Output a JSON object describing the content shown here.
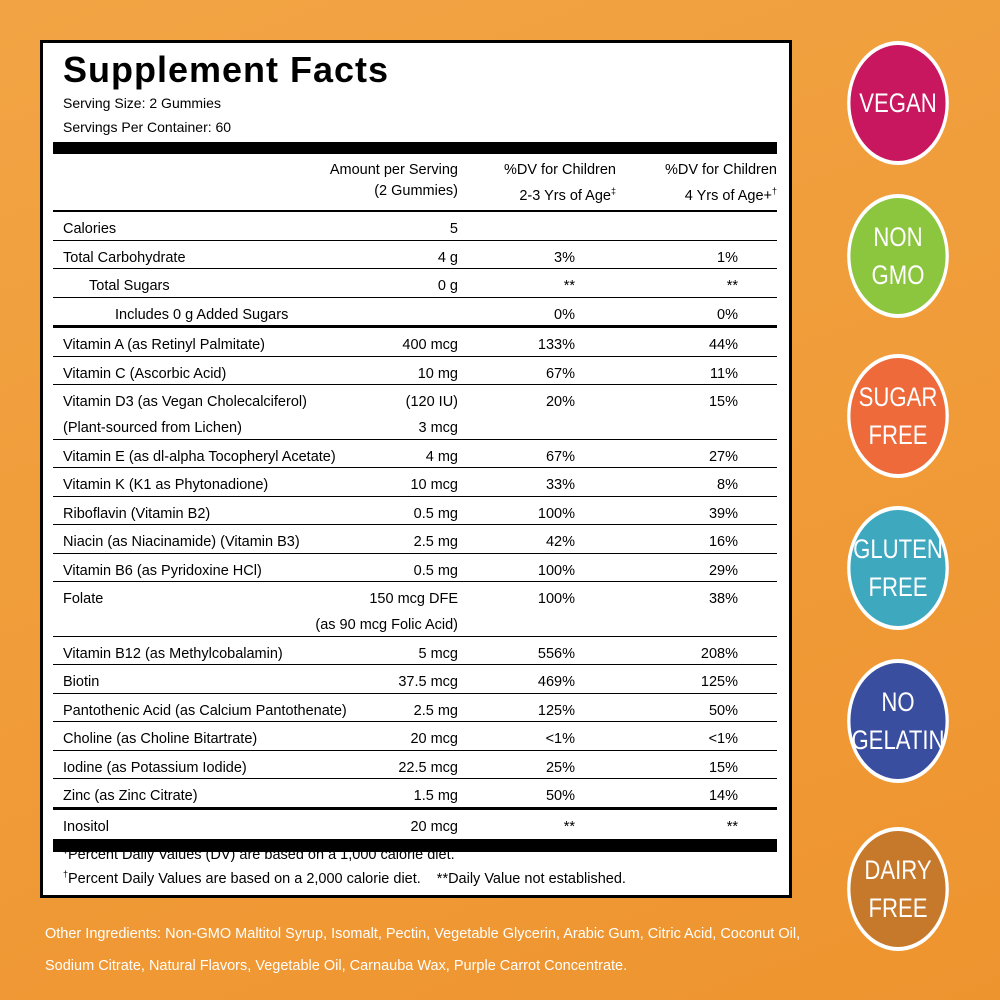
{
  "panel": {
    "title": "Supplement Facts",
    "serving_size": "Serving Size: 2 Gummies",
    "servings_per_container": "Servings Per Container: 60"
  },
  "header": {
    "columns": [
      {
        "lines": [
          "Amount per Serving",
          "(2 Gummies)"
        ]
      },
      {
        "lines": [
          "%DV for Children",
          "2-3 Yrs of Age"
        ],
        "mark": "‡"
      },
      {
        "lines": [
          "%DV for Children",
          "4 Yrs of Age+"
        ],
        "mark": "†"
      }
    ]
  },
  "table": {
    "sections": [
      {
        "rows": [
          {
            "name": [
              "Calories"
            ],
            "amount": [
              "5"
            ]
          },
          {
            "name": [
              "Total Carbohydrate"
            ],
            "amount": [
              "4 g"
            ],
            "dv_2_3": "3%",
            "dv_4": "1%"
          },
          {
            "name": [
              "Total Sugars"
            ],
            "amount": [
              "0 g"
            ],
            "dv_2_3": "**",
            "dv_4": "**"
          },
          {
            "name": [
              "Includes 0 g Added Sugars"
            ],
            "dv_2_3": "0%",
            "dv_4": "0%"
          }
        ]
      },
      {
        "rows": [
          {
            "name": [
              "Vitamin A (as Retinyl Palmitate)"
            ],
            "amount": [
              "400 mcg"
            ],
            "dv_2_3": "133%",
            "dv_4": "44%"
          },
          {
            "name": [
              "Vitamin C (Ascorbic Acid)"
            ],
            "amount": [
              "10 mg"
            ],
            "dv_2_3": "67%",
            "dv_4": "11%"
          },
          {
            "name": [
              "Vitamin D3 (as Vegan Cholecalciferol)",
              "(Plant-sourced from Lichen)"
            ],
            "amount": [
              "(120 IU)",
              "3 mcg"
            ],
            "dv_2_3": "20%",
            "dv_4": "15%"
          },
          {
            "name": [
              "Vitamin E (as dl-alpha Tocopheryl Acetate)"
            ],
            "amount": [
              "4 mg"
            ],
            "dv_2_3": "67%",
            "dv_4": "27%"
          },
          {
            "name": [
              "Vitamin K (K1 as Phytonadione)"
            ],
            "amount": [
              "10 mcg"
            ],
            "dv_2_3": "33%",
            "dv_4": "8%"
          },
          {
            "name": [
              "Riboflavin (Vitamin B2)"
            ],
            "amount": [
              "0.5 mg"
            ],
            "dv_2_3": "100%",
            "dv_4": "39%"
          },
          {
            "name": [
              "Niacin (as Niacinamide) (Vitamin B3)"
            ],
            "amount": [
              "2.5 mg"
            ],
            "dv_2_3": "42%",
            "dv_4": "16%"
          },
          {
            "name": [
              "Vitamin B6 (as Pyridoxine HCl)"
            ],
            "amount": [
              "0.5 mg"
            ],
            "dv_2_3": "100%",
            "dv_4": "29%"
          },
          {
            "name": [
              "Folate"
            ],
            "amount": [
              "150 mcg DFE",
              "(as 90 mcg Folic Acid)"
            ],
            "dv_2_3": "100%",
            "dv_4": "38%"
          },
          {
            "name": [
              "Vitamin B12 (as Methylcobalamin)"
            ],
            "amount": [
              "5 mcg"
            ],
            "dv_2_3": "556%",
            "dv_4": "208%"
          },
          {
            "name": [
              "Biotin"
            ],
            "amount": [
              "37.5 mcg"
            ],
            "dv_2_3": "469%",
            "dv_4": "125%"
          },
          {
            "name": [
              "Pantothenic Acid (as Calcium Pantothenate)"
            ],
            "amount": [
              "2.5 mg"
            ],
            "dv_2_3": "125%",
            "dv_4": "50%"
          },
          {
            "name": [
              "Choline (as Choline Bitartrate)"
            ],
            "amount": [
              "20 mcg"
            ],
            "dv_2_3": "<1%",
            "dv_4": "<1%"
          },
          {
            "name": [
              "Iodine (as Potassium Iodide)"
            ],
            "amount": [
              "22.5 mcg"
            ],
            "dv_2_3": "25%",
            "dv_4": "15%"
          },
          {
            "name": [
              "Zinc (as Zinc Citrate)"
            ],
            "amount": [
              "1.5 mg"
            ],
            "dv_2_3": "50%",
            "dv_4": "14%"
          }
        ]
      },
      {
        "rows": [
          {
            "name": [
              "Inositol"
            ],
            "amount": [
              "20 mcg"
            ],
            "dv_2_3": "**",
            "dv_4": "**"
          }
        ]
      }
    ]
  },
  "footnotes": [
    {
      "mark": "‡",
      "text": "Percent Daily Values (DV) are based on a 1,000 calorie diet."
    },
    {
      "mark": "†",
      "text": "Percent Daily Values are based on a 2,000 calorie diet.",
      "extra": "**Daily Value not established."
    }
  ],
  "other_ingredients": "Other Ingredients: Non-GMO Maltitol Syrup, Isomalt, Pectin, Vegetable Glycerin, Arabic Gum, Citric Acid, Coconut Oil, Sodium Citrate, Natural Flavors, Vegetable Oil, Carnauba Wax, Purple Carrot Concentrate.",
  "badges": [
    {
      "lines": [
        "VEGAN"
      ],
      "color": "#c8175e"
    },
    {
      "lines": [
        "NON",
        "GMO"
      ],
      "color": "#8cc63f"
    },
    {
      "lines": [
        "SUGAR",
        "FREE"
      ],
      "color": "#ee6a3a"
    },
    {
      "lines": [
        "GLUTEN",
        "FREE"
      ],
      "color": "#3ea8bf"
    },
    {
      "lines": [
        "NO",
        "GELATIN"
      ],
      "color": "#3a4e9f"
    },
    {
      "lines": [
        "DAIRY",
        "FREE"
      ],
      "color": "#c6782b"
    }
  ]
}
